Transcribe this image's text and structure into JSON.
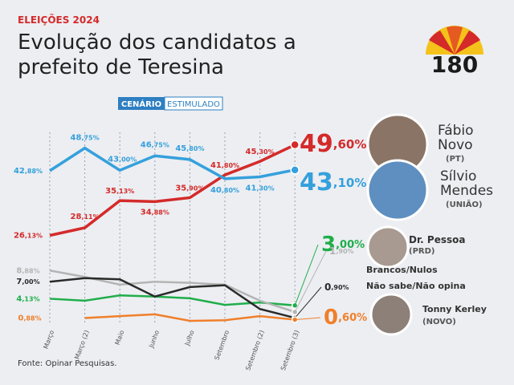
{
  "chart_data": {
    "type": "line",
    "kicker": "ELEIÇÕES 2024",
    "title": "Evolução dos candidatos a prefeito de Teresina",
    "logo": "180",
    "scenario": [
      "CENÁRIO",
      "ESTIMULADO"
    ],
    "source": "Fonte: Opinar Pesquisas.",
    "categories": [
      "Março",
      "Março (2)",
      "Maio",
      "Junho",
      "Julho",
      "Setembro",
      "Setembro (2)",
      "Setembro (3)"
    ],
    "ylim": [
      20,
      52
    ],
    "y2lim": [
      0,
      10
    ],
    "series": [
      {
        "name": "Fábio Novo",
        "party": "(PT)",
        "color": "#d42a2a",
        "values": [
          26.13,
          28.11,
          35.13,
          34.88,
          35.9,
          41.8,
          45.3,
          49.6
        ],
        "value_labels": [
          "26,13%",
          "28,11%",
          "35,13%",
          "34,88%",
          "35,90%",
          "41,80%",
          "45,30%",
          "49,60%"
        ]
      },
      {
        "name": "Sílvio Mendes",
        "party": "(UNIÃO)",
        "color": "#35a0dc",
        "values": [
          42.88,
          48.75,
          43.0,
          46.75,
          45.8,
          40.8,
          41.3,
          43.1
        ],
        "value_labels": [
          "42,88%",
          "48,75%",
          "43,00%",
          "46,75%",
          "45,80%",
          "40,80%",
          "41,30%",
          "43,10%"
        ]
      },
      {
        "name": "Dr. Pessoa",
        "party": "(PRD)",
        "color": "#1fae4a",
        "axis": "y2",
        "values": [
          4.13,
          3.8,
          4.7,
          4.5,
          4.2,
          3.1,
          3.5,
          3.0
        ],
        "value_labels": [
          "4,13%",
          null,
          null,
          null,
          null,
          null,
          null,
          "3,00%"
        ]
      },
      {
        "name": "Brancos/Nulos",
        "color": "#b4b4b4",
        "axis": "y2",
        "values": [
          8.88,
          7.8,
          6.5,
          7.0,
          6.8,
          6.5,
          3.8,
          1.9
        ],
        "value_labels": [
          "8,88%",
          null,
          null,
          null,
          null,
          null,
          null,
          "1,90%"
        ]
      },
      {
        "name": "Não sabe/Não opina",
        "color": "#2a2a2a",
        "axis": "y2",
        "values": [
          7.0,
          7.6,
          7.4,
          4.5,
          6.1,
          6.4,
          2.4,
          0.9
        ],
        "value_labels": [
          "7,00%",
          null,
          null,
          null,
          null,
          null,
          null,
          "0,90%"
        ]
      },
      {
        "name": "Tonny Kerley",
        "party": "(NOVO)",
        "color": "#f07f2a",
        "axis": "y2",
        "values": [
          null,
          0.88,
          1.2,
          1.5,
          0.4,
          0.5,
          1.2,
          0.6
        ],
        "value_labels": [
          null,
          "0,88%",
          null,
          null,
          null,
          null,
          null,
          "0,60%"
        ]
      }
    ]
  }
}
